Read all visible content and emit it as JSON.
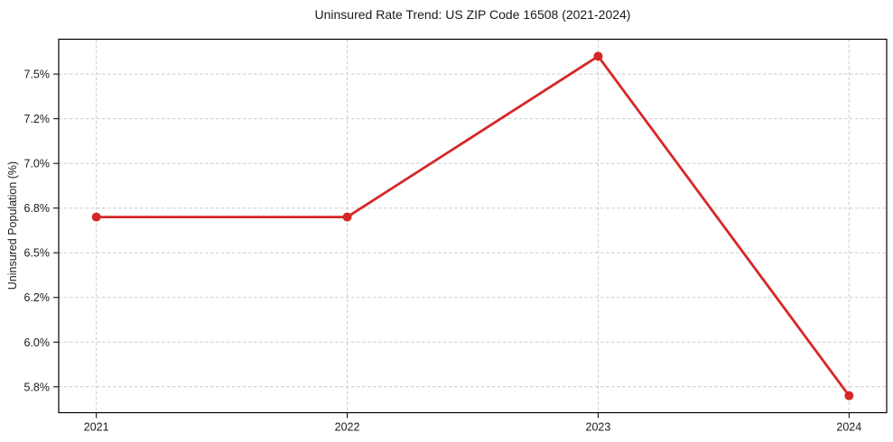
{
  "chart_data": {
    "type": "line",
    "title": "Uninsured Rate Trend: US ZIP Code 16508 (2021-2024)",
    "xlabel": "",
    "ylabel": "Uninsured Population (%)",
    "x": [
      2021,
      2022,
      2023,
      2024
    ],
    "values": [
      6.7,
      6.7,
      7.6,
      5.7
    ],
    "xticks": [
      2021,
      2022,
      2023,
      2024
    ],
    "xtick_labels": [
      "2021",
      "2022",
      "2023",
      "2024"
    ],
    "yticks": [
      5.75,
      6.0,
      6.25,
      6.5,
      6.75,
      7.0,
      7.25,
      7.5
    ],
    "ytick_labels": [
      "5.8%",
      "6.0%",
      "6.2%",
      "6.5%",
      "6.8%",
      "7.0%",
      "7.2%",
      "7.5%"
    ],
    "xlim": [
      2020.85,
      2024.15
    ],
    "ylim": [
      5.605,
      7.695
    ],
    "grid": true,
    "grid_style": "dashed",
    "legend": false,
    "line_color": "#d62728",
    "marker": "circle",
    "grid_color": "#cccccc",
    "axis_color": "#000000"
  }
}
